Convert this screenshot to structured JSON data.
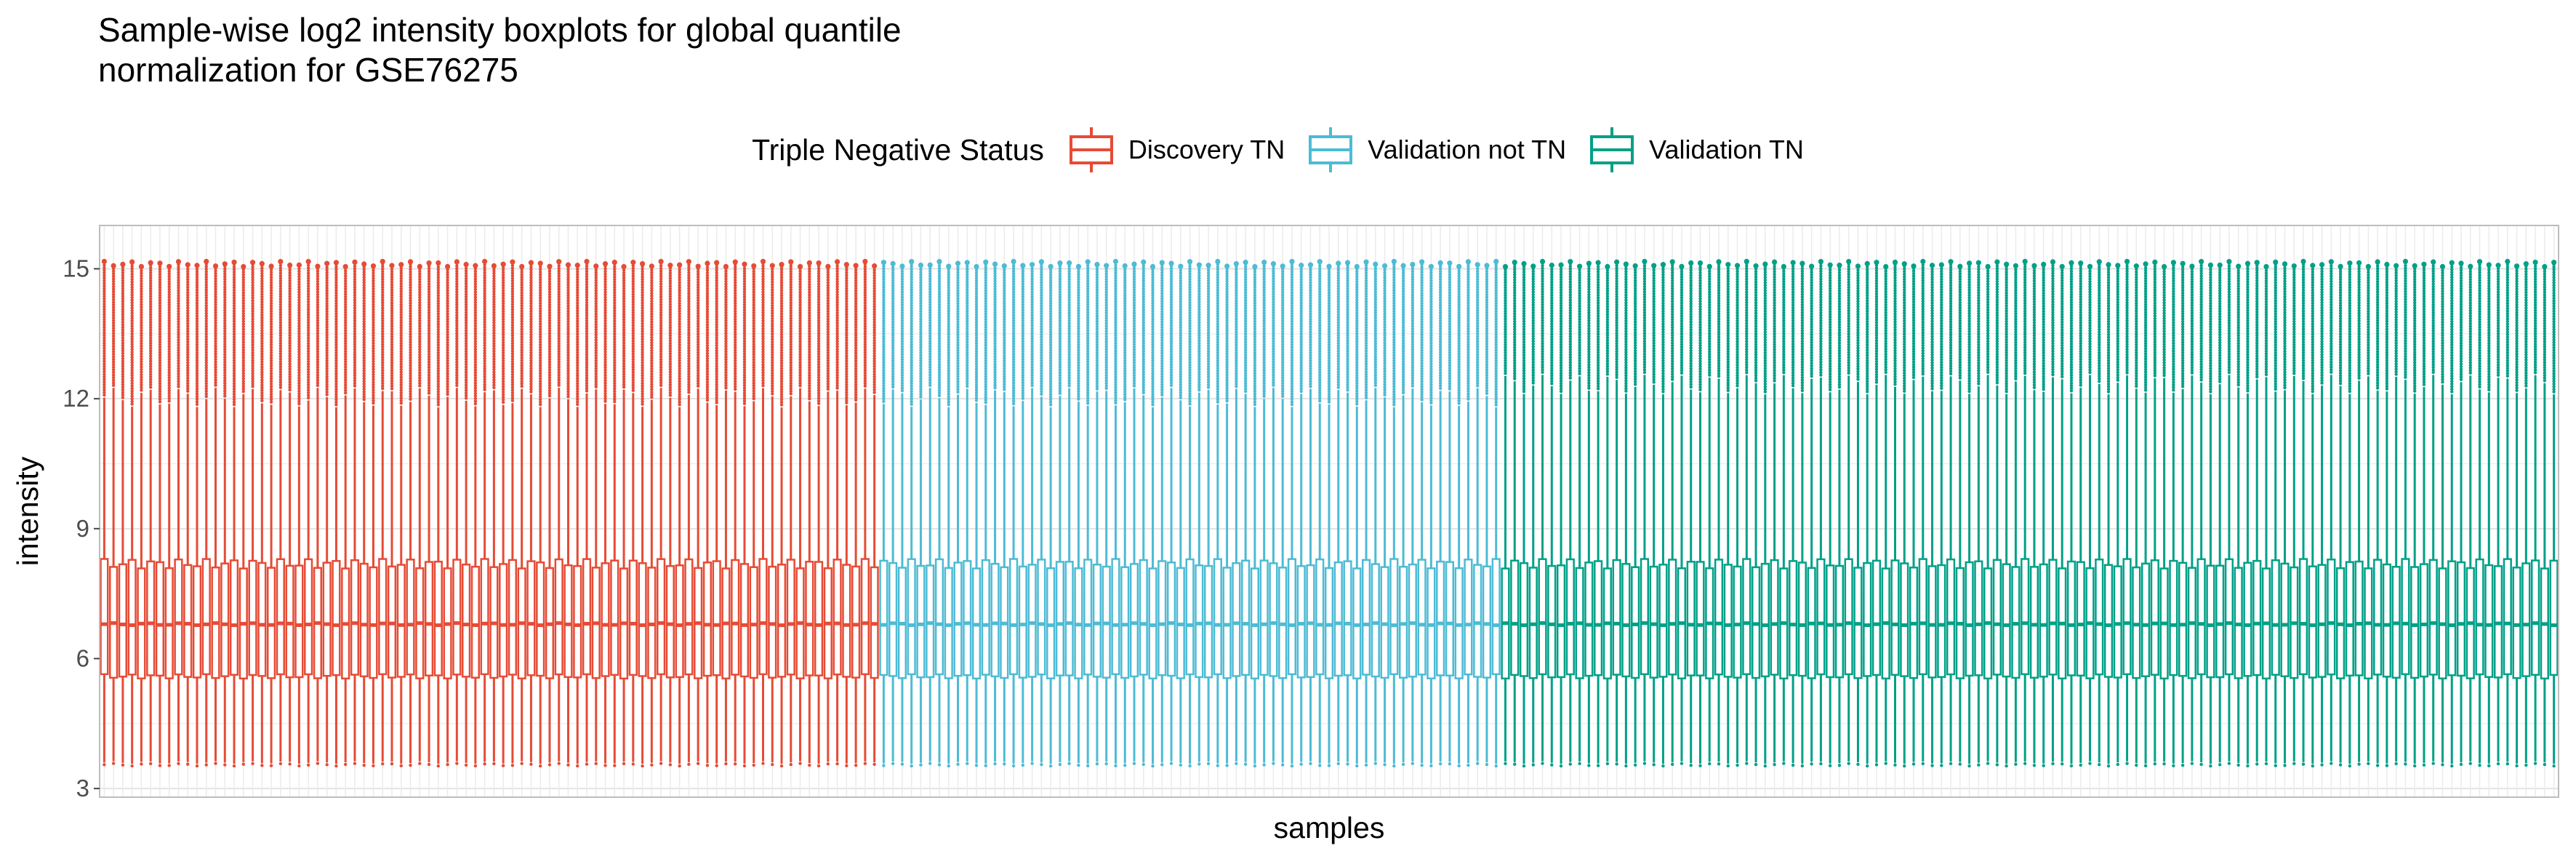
{
  "chart_data": {
    "type": "boxplot",
    "title": "Sample-wise log2 intensity boxplots for global quantile\nnormalization for GSE76275",
    "xlabel": "samples",
    "ylabel": "intensity",
    "ylim": [
      2.8,
      16.0
    ],
    "yticks": [
      3,
      6,
      9,
      12,
      15
    ],
    "grid": true,
    "legend": {
      "title": "Triple Negative Status",
      "placement": "top"
    },
    "groups": [
      {
        "name": "Discovery TN",
        "color": "#E64B35",
        "n_samples": 84,
        "typical_box": {
          "whisker_low": 3.6,
          "q1": 5.6,
          "median": 6.8,
          "q3": 8.2,
          "whisker_high": 12.1,
          "max_outlier": 15.1
        }
      },
      {
        "name": "Validation not TN",
        "color": "#4DBBD5",
        "n_samples": 67,
        "typical_box": {
          "whisker_low": 3.6,
          "q1": 5.6,
          "median": 6.8,
          "q3": 8.2,
          "whisker_high": 12.1,
          "max_outlier": 15.1
        }
      },
      {
        "name": "Validation TN",
        "color": "#00A087",
        "n_samples": 114,
        "typical_box": {
          "whisker_low": 3.6,
          "q1": 5.6,
          "median": 6.8,
          "q3": 8.2,
          "whisker_high": 12.4,
          "max_outlier": 15.1
        }
      }
    ]
  }
}
